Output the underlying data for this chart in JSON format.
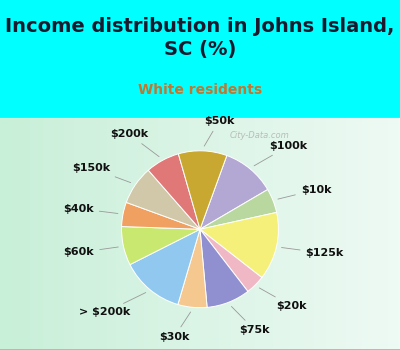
{
  "title": "Income distribution in Johns Island,\nSC (%)",
  "subtitle": "White residents",
  "bg_color": "#00FFFF",
  "title_color": "#1a1a2e",
  "subtitle_color": "#c07830",
  "title_fontsize": 14,
  "subtitle_fontsize": 10,
  "label_fontsize": 8,
  "labels": [
    "$100k",
    "$10k",
    "$125k",
    "$20k",
    "$75k",
    "$30k",
    "> $200k",
    "$60k",
    "$40k",
    "$150k",
    "$200k",
    "$50k"
  ],
  "values": [
    11,
    5,
    14,
    4,
    9,
    6,
    13,
    8,
    5,
    8,
    7,
    10
  ],
  "colors": [
    "#b3a8d4",
    "#b8d8a0",
    "#f5f07a",
    "#f0b8c4",
    "#9090d0",
    "#f5c890",
    "#90c8f0",
    "#c8e870",
    "#f0a060",
    "#d0c8a8",
    "#e07878",
    "#c8a830"
  ],
  "startangle": 70,
  "chart_grad_start": "#c8efd8",
  "chart_grad_end": "#eefaf4",
  "watermark": "City-Data.com",
  "watermark_color": "#aaaaaa",
  "line_color": "#999999"
}
